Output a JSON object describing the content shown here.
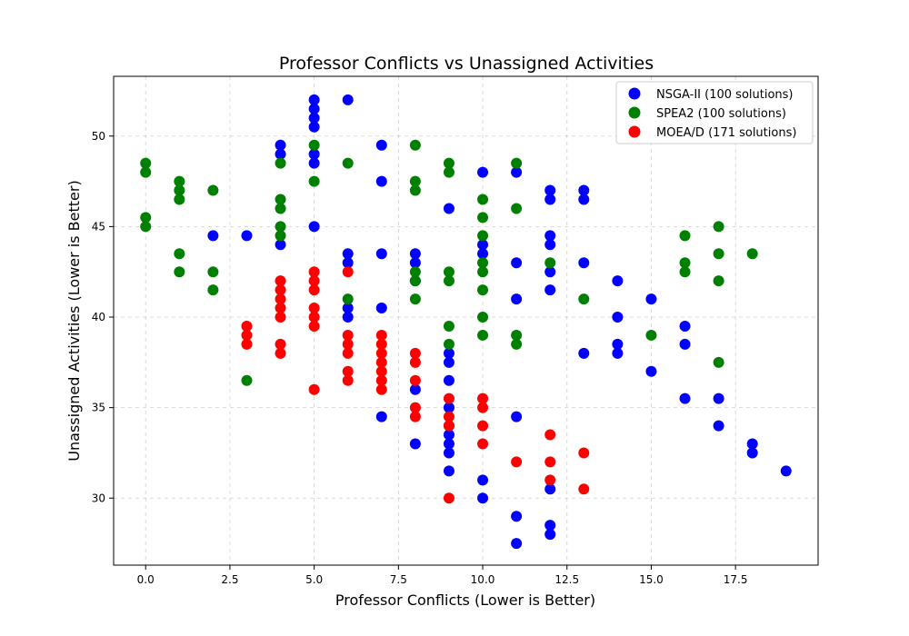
{
  "chart_data": {
    "type": "scatter",
    "title": "Professor Conflicts vs Unassigned Activities",
    "xlabel": "Professor Conflicts (Lower is Better)",
    "ylabel": "Unassigned Activities (Lower is Better)",
    "xlim": [
      -0.95,
      19.95
    ],
    "ylim": [
      26.3,
      53.3
    ],
    "xticks": [
      "0.0",
      "2.5",
      "5.0",
      "7.5",
      "10.0",
      "12.5",
      "15.0",
      "17.5"
    ],
    "yticks": [
      "30",
      "35",
      "40",
      "45",
      "50"
    ],
    "grid": true,
    "legend_position": "top-right",
    "series": [
      {
        "name": "NSGA-II (100 solutions)",
        "color": "#0000ff",
        "points": [
          [
            2,
            44.5
          ],
          [
            3,
            44.5
          ],
          [
            4,
            49.5
          ],
          [
            4,
            49
          ],
          [
            4,
            44
          ],
          [
            5,
            52
          ],
          [
            5,
            51.5
          ],
          [
            5,
            51
          ],
          [
            5,
            50.5
          ],
          [
            5,
            49
          ],
          [
            5,
            48.5
          ],
          [
            5,
            45
          ],
          [
            6,
            52
          ],
          [
            6,
            43.5
          ],
          [
            6,
            43
          ],
          [
            6,
            40.5
          ],
          [
            6,
            40
          ],
          [
            7,
            49.5
          ],
          [
            7,
            47.5
          ],
          [
            7,
            43.5
          ],
          [
            7,
            40.5
          ],
          [
            7,
            34.5
          ],
          [
            8,
            43.5
          ],
          [
            8,
            43
          ],
          [
            8,
            42
          ],
          [
            8,
            36
          ],
          [
            8,
            33
          ],
          [
            9,
            46
          ],
          [
            9,
            38
          ],
          [
            9,
            37.5
          ],
          [
            9,
            36.5
          ],
          [
            9,
            35
          ],
          [
            9,
            34
          ],
          [
            9,
            33.5
          ],
          [
            9,
            33
          ],
          [
            9,
            32.5
          ],
          [
            9,
            31.5
          ],
          [
            10,
            48
          ],
          [
            10,
            44
          ],
          [
            10,
            43.5
          ],
          [
            10,
            31
          ],
          [
            10,
            30
          ],
          [
            11,
            48
          ],
          [
            11,
            43
          ],
          [
            11,
            41
          ],
          [
            11,
            34.5
          ],
          [
            11,
            29
          ],
          [
            11,
            27.5
          ],
          [
            12,
            47
          ],
          [
            12,
            46.5
          ],
          [
            12,
            44.5
          ],
          [
            12,
            44
          ],
          [
            12,
            42.5
          ],
          [
            12,
            41.5
          ],
          [
            12,
            30.5
          ],
          [
            12,
            28.5
          ],
          [
            12,
            28
          ],
          [
            13,
            47
          ],
          [
            13,
            46.5
          ],
          [
            13,
            43
          ],
          [
            13,
            38
          ],
          [
            14,
            42
          ],
          [
            14,
            40
          ],
          [
            14,
            38.5
          ],
          [
            14,
            38
          ],
          [
            15,
            41
          ],
          [
            15,
            37
          ],
          [
            16,
            39.5
          ],
          [
            16,
            38.5
          ],
          [
            16,
            35.5
          ],
          [
            17,
            35.5
          ],
          [
            17,
            34
          ],
          [
            18,
            33
          ],
          [
            18,
            32.5
          ],
          [
            19,
            31.5
          ]
        ]
      },
      {
        "name": "SPEA2 (100 solutions)",
        "color": "#008000",
        "points": [
          [
            0,
            48.5
          ],
          [
            0,
            48
          ],
          [
            0,
            45.5
          ],
          [
            0,
            45
          ],
          [
            1,
            47.5
          ],
          [
            1,
            47
          ],
          [
            1,
            46.5
          ],
          [
            1,
            43.5
          ],
          [
            1,
            42.5
          ],
          [
            2,
            47
          ],
          [
            2,
            42.5
          ],
          [
            2,
            41.5
          ],
          [
            3,
            36.5
          ],
          [
            4,
            48.5
          ],
          [
            4,
            46.5
          ],
          [
            4,
            46
          ],
          [
            4,
            45
          ],
          [
            4,
            44.5
          ],
          [
            5,
            49.5
          ],
          [
            5,
            47.5
          ],
          [
            6,
            48.5
          ],
          [
            6,
            41
          ],
          [
            8,
            49.5
          ],
          [
            8,
            47.5
          ],
          [
            8,
            47
          ],
          [
            8,
            42.5
          ],
          [
            8,
            42
          ],
          [
            8,
            41
          ],
          [
            9,
            48.5
          ],
          [
            9,
            48
          ],
          [
            9,
            42.5
          ],
          [
            9,
            42
          ],
          [
            9,
            39.5
          ],
          [
            9,
            38.5
          ],
          [
            10,
            46.5
          ],
          [
            10,
            45.5
          ],
          [
            10,
            44.5
          ],
          [
            10,
            43
          ],
          [
            10,
            42.5
          ],
          [
            10,
            41.5
          ],
          [
            10,
            40
          ],
          [
            10,
            39
          ],
          [
            11,
            48.5
          ],
          [
            11,
            46
          ],
          [
            11,
            39
          ],
          [
            11,
            38.5
          ],
          [
            12,
            43
          ],
          [
            13,
            41
          ],
          [
            15,
            39
          ],
          [
            16,
            44.5
          ],
          [
            16,
            43
          ],
          [
            16,
            42.5
          ],
          [
            17,
            45
          ],
          [
            17,
            43.5
          ],
          [
            17,
            42
          ],
          [
            17,
            37.5
          ],
          [
            18,
            43.5
          ]
        ]
      },
      {
        "name": "MOEA/D (171 solutions)",
        "color": "#ff0000",
        "points": [
          [
            3,
            39.5
          ],
          [
            3,
            39
          ],
          [
            3,
            38.5
          ],
          [
            4,
            42
          ],
          [
            4,
            41.5
          ],
          [
            4,
            41
          ],
          [
            4,
            40.5
          ],
          [
            4,
            40
          ],
          [
            4,
            38.5
          ],
          [
            4,
            38
          ],
          [
            5,
            42.5
          ],
          [
            5,
            42
          ],
          [
            5,
            41.5
          ],
          [
            5,
            40.5
          ],
          [
            5,
            40
          ],
          [
            5,
            39.5
          ],
          [
            5,
            36
          ],
          [
            6,
            42.5
          ],
          [
            6,
            39
          ],
          [
            6,
            38.5
          ],
          [
            6,
            38
          ],
          [
            6,
            37
          ],
          [
            6,
            36.5
          ],
          [
            7,
            39
          ],
          [
            7,
            38.5
          ],
          [
            7,
            38
          ],
          [
            7,
            37.5
          ],
          [
            7,
            37
          ],
          [
            7,
            36.5
          ],
          [
            7,
            36
          ],
          [
            8,
            38
          ],
          [
            8,
            37.5
          ],
          [
            8,
            36.5
          ],
          [
            8,
            35
          ],
          [
            8,
            34.5
          ],
          [
            9,
            35.5
          ],
          [
            9,
            34.5
          ],
          [
            9,
            34
          ],
          [
            9,
            30
          ],
          [
            10,
            35.5
          ],
          [
            10,
            35
          ],
          [
            10,
            34
          ],
          [
            10,
            33
          ],
          [
            11,
            32
          ],
          [
            12,
            33.5
          ],
          [
            12,
            32
          ],
          [
            12,
            31
          ],
          [
            13,
            32.5
          ],
          [
            13,
            30.5
          ]
        ]
      }
    ]
  }
}
